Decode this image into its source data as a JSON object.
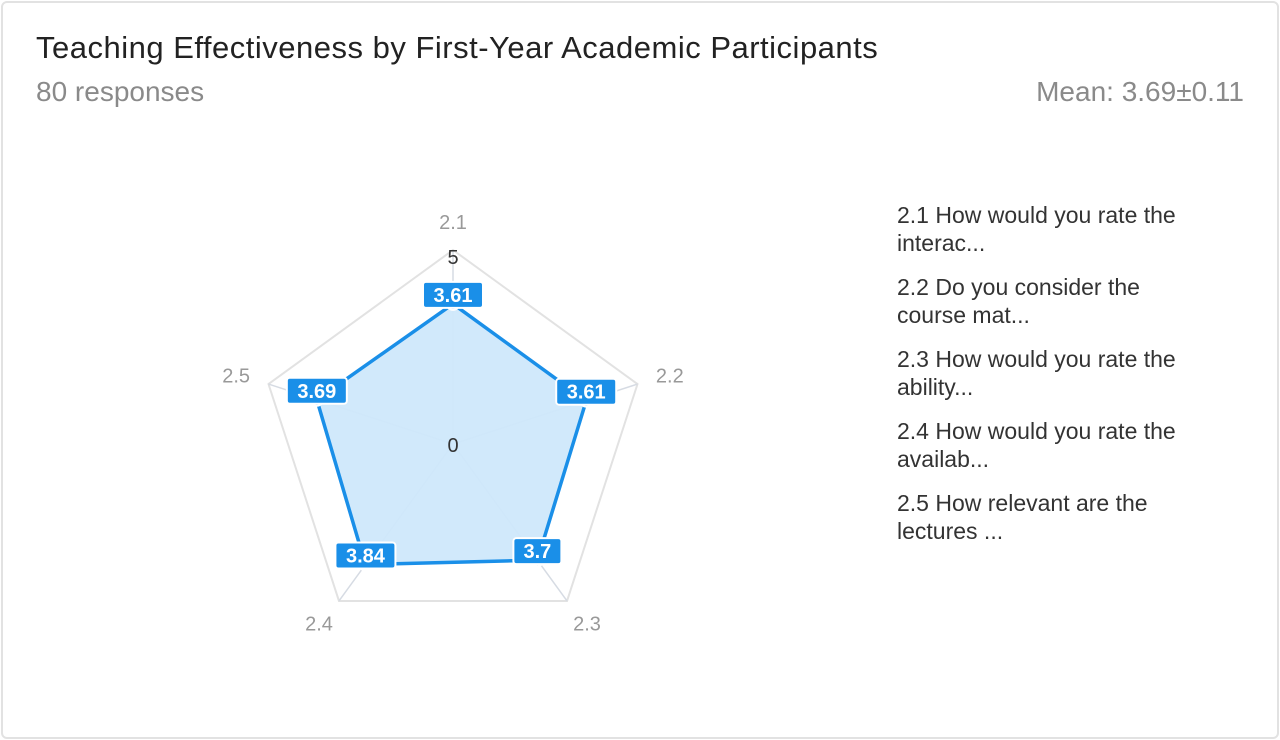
{
  "header": {
    "title": "Teaching Effectiveness by First-Year Academic Participants",
    "responses": "80 responses",
    "mean": "Mean: 3.69±0.11"
  },
  "colors": {
    "series": "#1a8fe8",
    "fill": "#cfe8fb",
    "grid": "#e2e2e2",
    "spoke": "#d6dbe3",
    "axis_label": "#999999",
    "tick_label": "#333333"
  },
  "chart_data": {
    "type": "radar",
    "axes": [
      "2.1",
      "2.2",
      "2.3",
      "2.4",
      "2.5"
    ],
    "values": [
      3.61,
      3.61,
      3.7,
      3.84,
      3.69
    ],
    "value_labels": [
      "3.61",
      "3.61",
      "3.7",
      "3.84",
      "3.69"
    ],
    "rlim": [
      0,
      5
    ],
    "ticks": [
      "0",
      "5"
    ],
    "legend": [
      "2.1 How would you rate the interac...",
      "2.2 Do you consider the course mat...",
      "2.3 How would you rate the ability...",
      "2.4 How would you rate the availab...",
      "2.5 How relevant are the lectures ..."
    ]
  }
}
